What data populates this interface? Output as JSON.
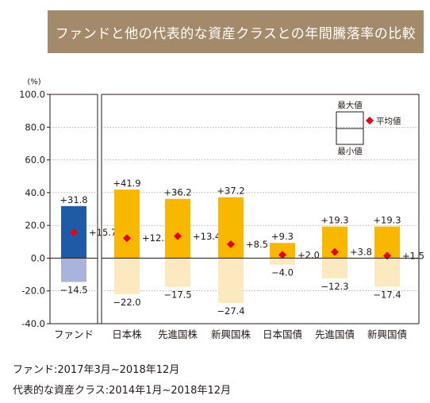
{
  "title": "ファンドと他の代表的な資産クラスとの年間騰落率の比較",
  "notes": [
    "ファンド:2017年3月~2018年12月",
    "代表的な資産クラス:2014年1月~2018年12月"
  ],
  "colors": {
    "fund_upper": "#1F5AA6",
    "fund_lower": "#A9B4DC",
    "asset_upper": "#F9B800",
    "asset_lower": "#FDE9BF",
    "mean_marker": "#E60012",
    "banner": "#A38A6B"
  },
  "chart_data": {
    "type": "range-bar",
    "unit_label": "(%)",
    "ylim": [
      -40,
      100
    ],
    "yticks": [
      -40,
      -20,
      0,
      20,
      40,
      60,
      80,
      100
    ],
    "ytick_labels": [
      "-40.0",
      "-20.0",
      "0.0",
      "20.0",
      "40.0",
      "60.0",
      "80.0",
      "100.0"
    ],
    "categories": [
      "ファンド",
      "日本株",
      "先進国株",
      "新興国株",
      "日本国債",
      "先進国債",
      "新興国債"
    ],
    "max": [
      31.8,
      41.9,
      36.2,
      37.2,
      9.3,
      19.3,
      19.3
    ],
    "mean": [
      15.7,
      12.2,
      13.4,
      8.5,
      2.0,
      3.8,
      1.5
    ],
    "min": [
      -14.5,
      -22.0,
      -17.5,
      -27.4,
      -4.0,
      -12.3,
      -17.4
    ],
    "max_labels": [
      "+31.8",
      "+41.9",
      "+36.2",
      "+37.2",
      "+9.3",
      "+19.3",
      "+19.3"
    ],
    "mean_labels": [
      "+15.7",
      "+12.2",
      "+13.4",
      "+8.5",
      "+2.0",
      "+3.8",
      "+1.5"
    ],
    "min_labels": [
      "−14.5",
      "−22.0",
      "−17.5",
      "−27.4",
      "−4.0",
      "−12.3",
      "−17.4"
    ],
    "legend": {
      "max": "最大値",
      "min": "最小値",
      "mean": "平均値"
    }
  }
}
